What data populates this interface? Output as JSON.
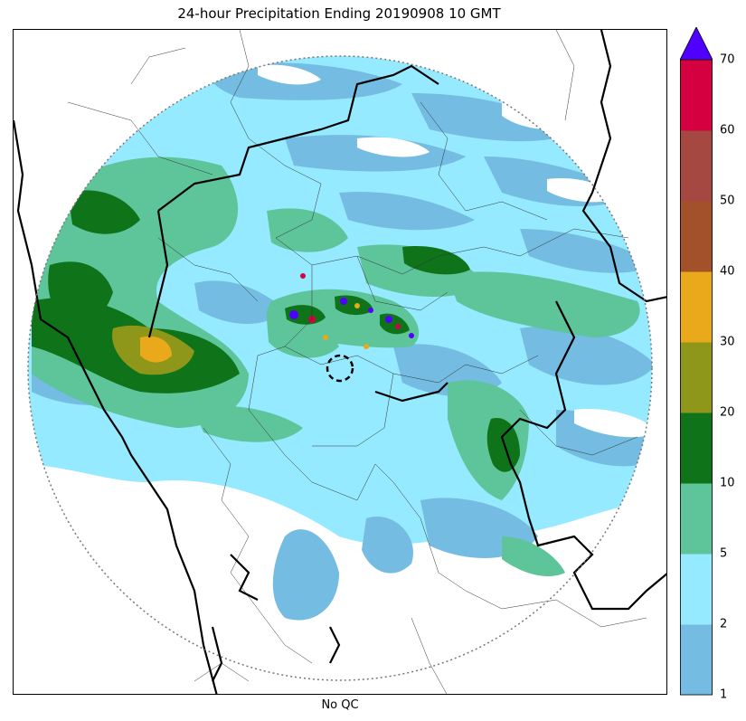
{
  "title": "24-hour Precipitation Ending 20190908 10 GMT",
  "footer": "No QC",
  "colorbar": {
    "ticks": [
      "1",
      "2",
      "5",
      "10",
      "20",
      "30",
      "40",
      "50",
      "60",
      "70"
    ],
    "bins": [
      {
        "from": "1",
        "to": "2",
        "color": "#74bce1"
      },
      {
        "from": "2",
        "to": "5",
        "color": "#96eaff"
      },
      {
        "from": "5",
        "to": "10",
        "color": "#5ec49a"
      },
      {
        "from": "10",
        "to": "20",
        "color": "#0f731a"
      },
      {
        "from": "20",
        "to": "30",
        "color": "#8e9719"
      },
      {
        "from": "30",
        "to": "40",
        "color": "#e9a91b"
      },
      {
        "from": "40",
        "to": "50",
        "color": "#a2512a"
      },
      {
        "from": "50",
        "to": "60",
        "color": "#a44841"
      },
      {
        "from": "60",
        "to": "70",
        "color": "#d5003f"
      }
    ],
    "extend_color": "#5000ff"
  },
  "map": {
    "radar_range_ring": "dotted",
    "radar_site_marker": "dashed-circle",
    "borders": [
      "state-boundaries",
      "district-boundaries",
      "coastline"
    ]
  }
}
